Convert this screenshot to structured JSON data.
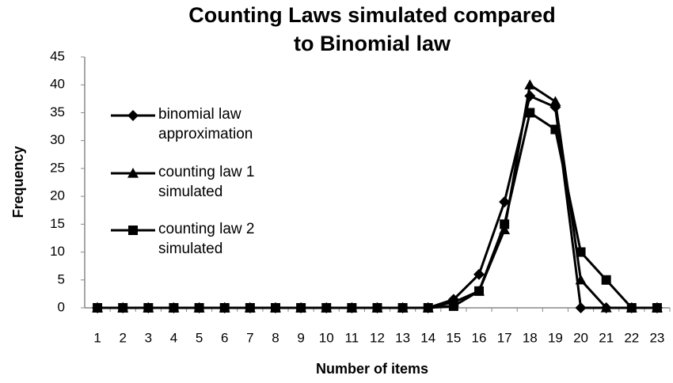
{
  "chart_data": {
    "type": "line",
    "title": [
      "Counting Laws simulated compared",
      "to  Binomial law"
    ],
    "x_label": "Number of items",
    "y_label": "Frequency",
    "categories": [
      1,
      2,
      3,
      4,
      5,
      6,
      7,
      8,
      9,
      10,
      11,
      12,
      13,
      14,
      15,
      16,
      17,
      18,
      19,
      20,
      21,
      22,
      23
    ],
    "series": [
      {
        "name": "binomial law approximation",
        "color": "#000000",
        "marker": "diamond",
        "values": [
          0,
          0,
          0,
          0,
          0,
          0,
          0,
          0,
          0,
          0,
          0,
          0,
          0,
          0,
          1.5,
          6,
          19,
          38,
          36,
          0,
          0,
          0,
          0
        ]
      },
      {
        "name": "counting law 1 simulated",
        "color": "#000000",
        "marker": "triangle",
        "values": [
          0,
          0,
          0,
          0,
          0,
          0,
          0,
          0,
          0,
          0,
          0,
          0,
          0,
          0,
          1,
          3,
          14,
          40,
          37,
          5,
          0,
          0,
          0
        ]
      },
      {
        "name": "counting law 2 simulated",
        "color": "#000000",
        "marker": "square",
        "values": [
          0,
          0,
          0,
          0,
          0,
          0,
          0,
          0,
          0,
          0,
          0,
          0,
          0,
          0,
          0.3,
          3,
          15,
          35,
          32,
          10,
          5,
          0,
          0
        ]
      }
    ],
    "ylim": [
      0,
      45
    ],
    "yticks": [
      0,
      5,
      10,
      15,
      20,
      25,
      30,
      35,
      40,
      45
    ],
    "grid": false
  }
}
